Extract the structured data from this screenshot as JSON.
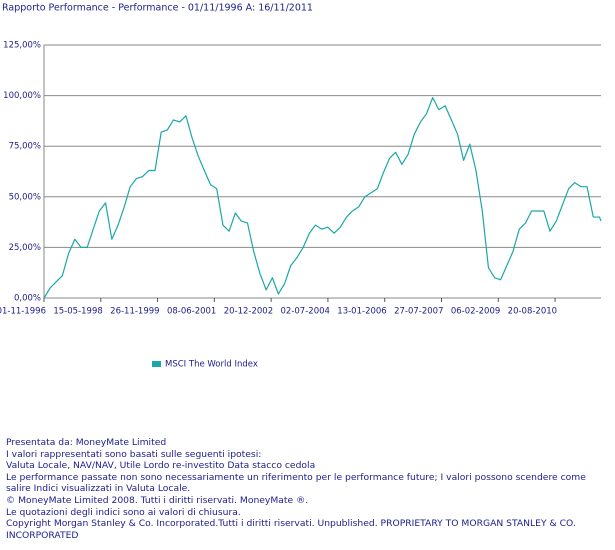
{
  "chart_data": {
    "type": "line",
    "title": "Rapporto Performance - Performance  - 01/11/1996 A:  16/11/2011",
    "x": [
      "1996-11-01",
      "1997-01-01",
      "1997-03-01",
      "1997-05-01",
      "1997-07-01",
      "1997-09-01",
      "1997-11-01",
      "1998-01-01",
      "1998-03-01",
      "1998-05-01",
      "1998-07-01",
      "1998-09-01",
      "1998-11-01",
      "1999-01-01",
      "1999-03-01",
      "1999-05-01",
      "1999-07-01",
      "1999-09-01",
      "1999-11-01",
      "2000-01-01",
      "2000-03-01",
      "2000-05-01",
      "2000-07-01",
      "2000-09-01",
      "2000-11-01",
      "2001-01-01",
      "2001-03-01",
      "2001-05-01",
      "2001-07-01",
      "2001-09-01",
      "2001-11-01",
      "2002-01-01",
      "2002-03-01",
      "2002-05-01",
      "2002-07-01",
      "2002-09-01",
      "2002-11-01",
      "2003-01-01",
      "2003-03-01",
      "2003-05-01",
      "2003-07-01",
      "2003-09-01",
      "2003-11-01",
      "2004-01-01",
      "2004-03-01",
      "2004-05-01",
      "2004-07-01",
      "2004-09-01",
      "2004-11-01",
      "2005-01-01",
      "2005-03-01",
      "2005-05-01",
      "2005-07-01",
      "2005-09-01",
      "2005-11-01",
      "2006-01-01",
      "2006-03-01",
      "2006-05-01",
      "2006-07-01",
      "2006-09-01",
      "2006-11-01",
      "2007-01-01",
      "2007-03-01",
      "2007-05-01",
      "2007-07-01",
      "2007-09-01",
      "2007-11-01",
      "2008-01-01",
      "2008-03-01",
      "2008-05-01",
      "2008-07-01",
      "2008-09-01",
      "2008-11-01",
      "2009-01-01",
      "2009-03-01",
      "2009-05-01",
      "2009-07-01",
      "2009-09-01",
      "2009-11-01",
      "2010-01-01",
      "2010-03-01",
      "2010-05-01",
      "2010-07-01",
      "2010-09-01",
      "2010-11-01",
      "2011-01-01",
      "2011-03-01",
      "2011-05-01",
      "2011-07-01",
      "2011-09-01",
      "2011-11-01",
      "2011-11-16"
    ],
    "series": [
      {
        "name": "MSCI The World Index",
        "color": "#1aa7a7",
        "values": [
          0,
          5,
          8,
          11,
          22,
          29,
          25,
          25,
          34,
          43,
          47,
          29,
          36,
          45,
          55,
          59,
          60,
          63,
          63,
          82,
          83,
          88,
          87,
          90,
          79,
          70,
          63,
          56,
          54,
          36,
          33,
          42,
          38,
          37,
          23,
          12,
          4,
          10,
          2,
          7,
          16,
          20,
          25,
          32,
          36,
          34,
          35,
          32,
          35,
          40,
          43,
          45,
          50,
          52,
          54,
          62,
          69,
          72,
          66,
          71,
          81,
          87,
          91,
          99,
          93,
          95,
          88,
          81,
          68,
          76,
          63,
          43,
          15,
          10,
          9,
          16,
          23,
          34,
          37,
          43,
          43,
          43,
          33,
          38,
          46,
          54,
          57,
          55,
          55,
          40,
          40,
          38
        ]
      }
    ],
    "xlim": [
      "1996-11-01",
      "2011-11-16"
    ],
    "xticks": [
      {
        "value": "1996-11-01",
        "label": "01-11-1996"
      },
      {
        "value": "1998-05-15",
        "label": "15-05-1998"
      },
      {
        "value": "1999-11-26",
        "label": "26-11-1999"
      },
      {
        "value": "2001-06-08",
        "label": "08-06-2001"
      },
      {
        "value": "2002-12-20",
        "label": "20-12-2002"
      },
      {
        "value": "2004-07-02",
        "label": "02-07-2004"
      },
      {
        "value": "2006-01-13",
        "label": "13-01-2006"
      },
      {
        "value": "2007-07-27",
        "label": "27-07-2007"
      },
      {
        "value": "2009-02-06",
        "label": "06-02-2009"
      },
      {
        "value": "2010-08-20",
        "label": "20-08-2010"
      }
    ],
    "ylim": [
      0,
      125
    ],
    "yticks": [
      {
        "value": 0,
        "label": "0,00%"
      },
      {
        "value": 25,
        "label": "25,00%"
      },
      {
        "value": 50,
        "label": "50,00%"
      },
      {
        "value": 75,
        "label": "75,00%"
      },
      {
        "value": 100,
        "label": "100,00%"
      },
      {
        "value": 125,
        "label": "125,00%"
      }
    ],
    "grid": true,
    "footer": [
      "Presentata da: MoneyMate Limited",
      "I valori rappresentati sono basati sulle seguenti ipotesi:",
      "Valuta Locale, NAV/NAV, Utile Lordo re-investito Data stacco cedola",
      "Le performance passate non sono necessariamente un riferimento per le performance future; I valori possono scendere come salire Indici visualizzati in Valuta Locale.",
      "© MoneyMate Limited 2008. Tutti i diritti riservati. MoneyMate ®.",
      "Le quotazioni degli indici sono ai valori di chiusura.",
      "Copyright Morgan Stanley & Co. Incorporated.Tutti i diritti riservati. Unpublished. PROPRIETARY TO MORGAN STANLEY & CO. INCORPORATED"
    ]
  }
}
